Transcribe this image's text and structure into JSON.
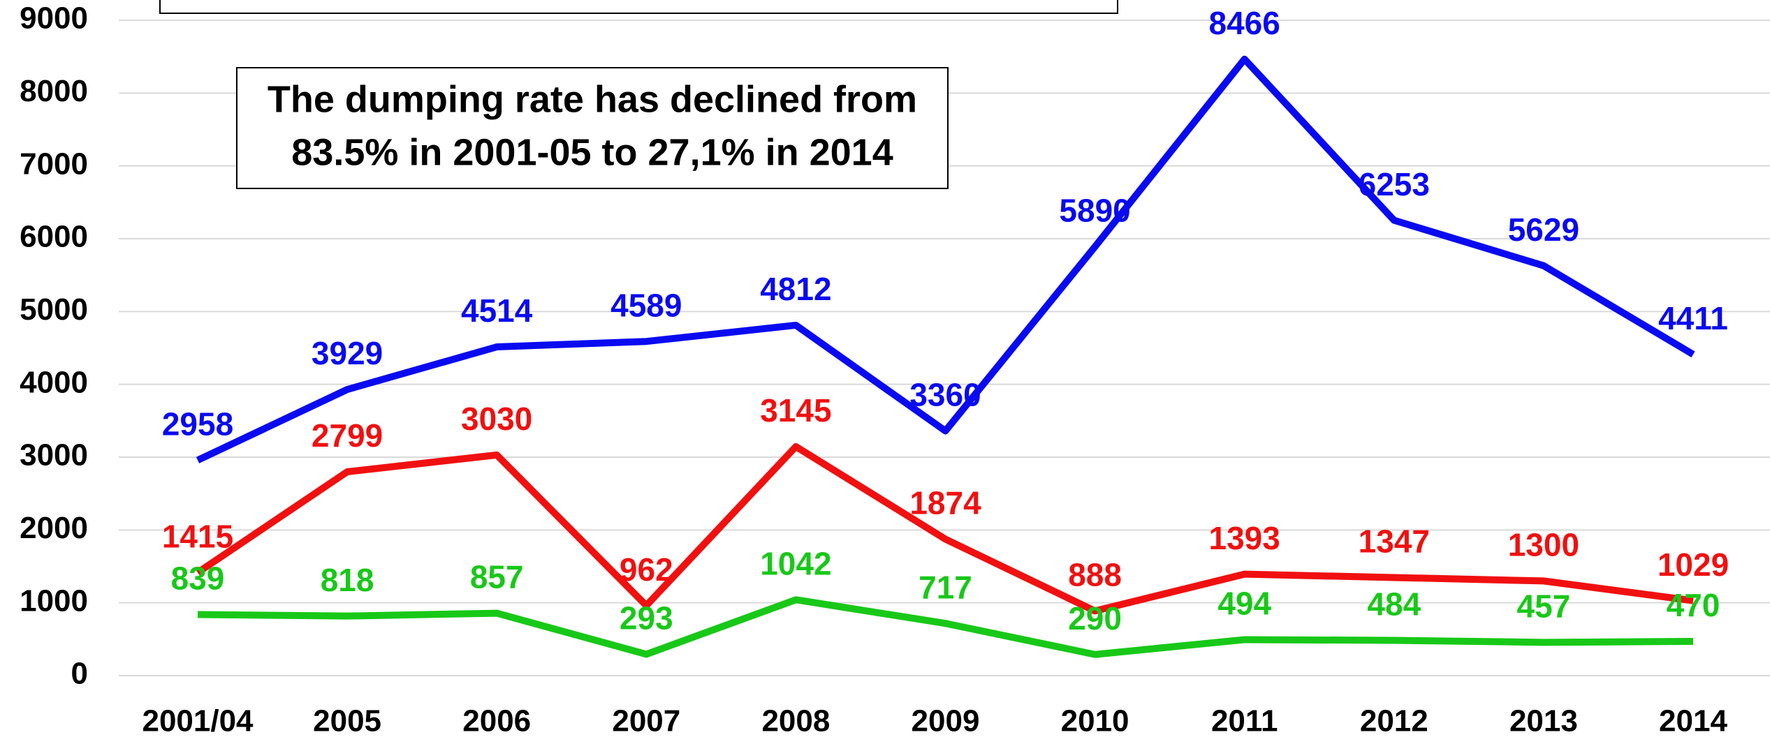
{
  "chart_data": {
    "type": "line",
    "annotation": [
      "The dumping rate has declined from",
      "83.5% in 2001-05 to 27,1% in 2014"
    ],
    "categories": [
      "2001/04",
      "2005",
      "2006",
      "2007",
      "2008",
      "2009",
      "2010",
      "2011",
      "2012",
      "2013",
      "2014"
    ],
    "series": [
      {
        "color": "#0a0af0",
        "values": [
          2958,
          3929,
          4514,
          4589,
          4812,
          3360,
          5890,
          8466,
          6253,
          5629,
          4411
        ]
      },
      {
        "color": "#f01010",
        "values": [
          1415,
          2799,
          3030,
          962,
          3145,
          1874,
          888,
          1393,
          1347,
          1300,
          1029
        ]
      },
      {
        "color": "#18c818",
        "values": [
          839,
          818,
          857,
          293,
          1042,
          717,
          290,
          494,
          484,
          457,
          470
        ]
      }
    ],
    "ylim": [
      0,
      9000
    ],
    "yticks": [
      0,
      1000,
      2000,
      3000,
      4000,
      5000,
      6000,
      7000,
      8000,
      9000
    ],
    "grid": true
  }
}
